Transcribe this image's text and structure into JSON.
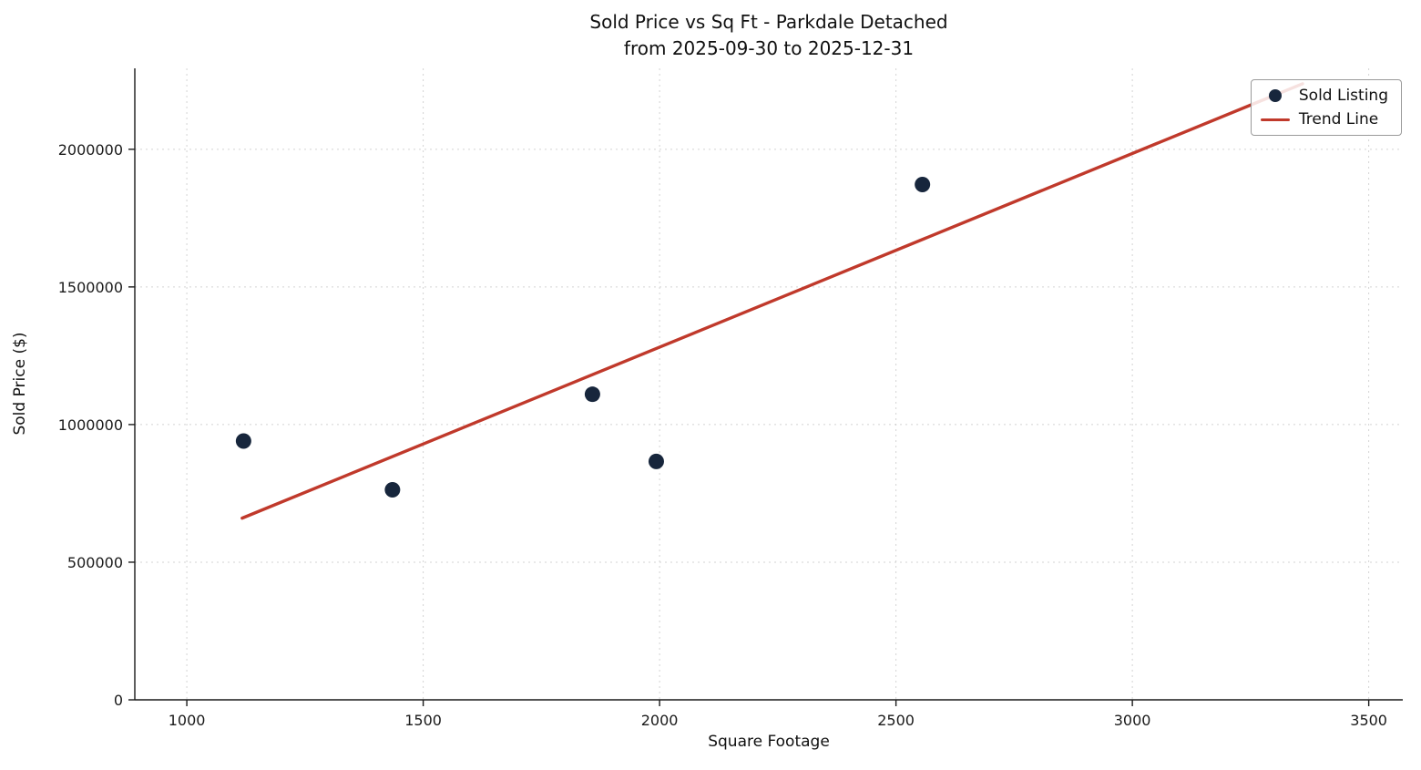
{
  "chart_data": {
    "type": "scatter",
    "title": "Sold Price vs Sq Ft - Parkdale Detached",
    "subtitle": "from 2025-09-30 to 2025-12-31",
    "xlabel": "Square Footage",
    "ylabel": "Sold Price ($)",
    "xlim": [
      890,
      3572
    ],
    "ylim": [
      0,
      2294000
    ],
    "x_ticks": [
      1000,
      1500,
      2000,
      2500,
      3000,
      3500
    ],
    "y_ticks": [
      0,
      500000,
      1000000,
      1500000,
      2000000
    ],
    "grid": true,
    "legend_position": "upper right",
    "series": [
      {
        "name": "Sold Listing",
        "kind": "scatter",
        "color": "#17263c",
        "points": [
          {
            "sqft": 1120,
            "price": 940000
          },
          {
            "sqft": 1435,
            "price": 763000
          },
          {
            "sqft": 1858,
            "price": 1110000
          },
          {
            "sqft": 1993,
            "price": 866000
          },
          {
            "sqft": 2556,
            "price": 1872000
          }
        ]
      },
      {
        "name": "Trend Line",
        "kind": "line",
        "color": "#c0392b",
        "points": [
          {
            "sqft": 1117,
            "price": 660000
          },
          {
            "sqft": 3360,
            "price": 2238000
          }
        ]
      }
    ]
  },
  "colors": {
    "background": "#ffffff",
    "grid": "#cccccc",
    "axis": "#1a1a1a",
    "scatter": "#17263c",
    "trend": "#c0392b"
  }
}
